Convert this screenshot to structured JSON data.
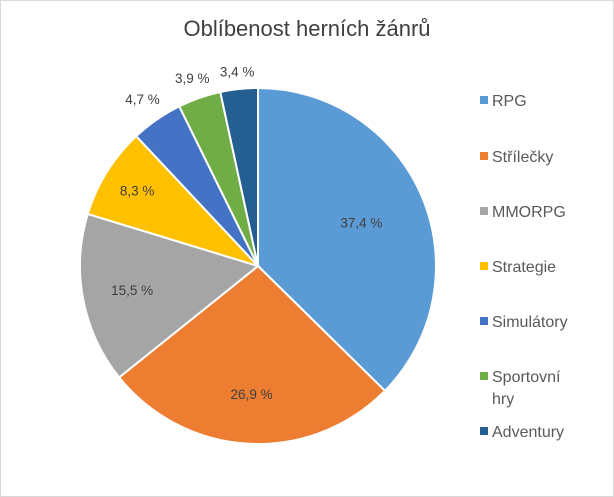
{
  "chart_data": {
    "type": "pie",
    "title": "Oblíbenost herních žánrů",
    "categories": [
      "RPG",
      "Střílečky",
      "MMORPG",
      "Strategie",
      "Simulátory",
      "Sportovní hry",
      "Adventury"
    ],
    "values": [
      37.4,
      26.9,
      15.5,
      8.3,
      4.7,
      3.9,
      3.4
    ],
    "data_labels": [
      "37,4 %",
      "26,9 %",
      "15,5 %",
      "8,3 %",
      "4,7 %",
      "3,9 %",
      "3,4 %"
    ],
    "colors": [
      "#5b9bd5",
      "#ed7d31",
      "#a5a5a5",
      "#ffc000",
      "#4472c4",
      "#70ad47",
      "#255e91"
    ],
    "legend_lines": [
      [
        "RPG"
      ],
      [
        "Střílečky"
      ],
      [
        "MMORPG"
      ],
      [
        "Strategie"
      ],
      [
        "Simulátory"
      ],
      [
        "Sportovní",
        "hry"
      ],
      [
        "Adventury"
      ]
    ],
    "legend_position": "right",
    "start_angle_deg": 0,
    "direction": "clockwise"
  }
}
